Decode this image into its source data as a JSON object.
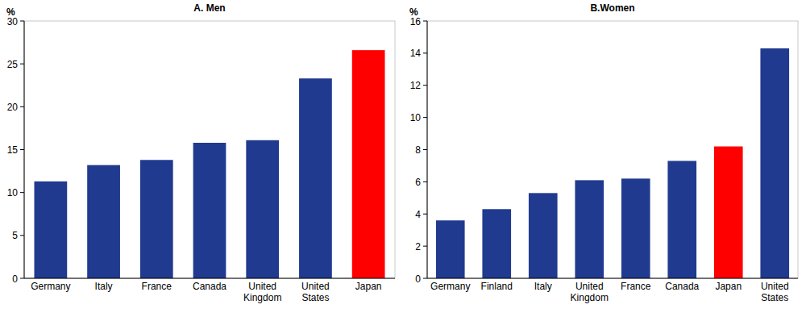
{
  "chart_data": [
    {
      "type": "bar",
      "title": "A. Men",
      "y_label": "%",
      "categories": [
        "Germany",
        "Italy",
        "France",
        "Canada",
        "United Kingdom",
        "United States",
        "Japan"
      ],
      "values": [
        11.3,
        13.2,
        13.8,
        15.8,
        16.1,
        23.3,
        26.6
      ],
      "colors": [
        "#203a8f",
        "#203a8f",
        "#203a8f",
        "#203a8f",
        "#203a8f",
        "#203a8f",
        "#ff0000"
      ],
      "ylim": [
        0,
        30
      ],
      "yticks": [
        0,
        5,
        10,
        15,
        20,
        25,
        30
      ],
      "grid": false
    },
    {
      "type": "bar",
      "title": "B.Women",
      "y_label": "%",
      "categories": [
        "Germany",
        "Finland",
        "Italy",
        "United Kingdom",
        "France",
        "Canada",
        "Japan",
        "United States"
      ],
      "values": [
        3.6,
        4.3,
        5.3,
        6.1,
        6.2,
        7.3,
        8.2,
        14.3
      ],
      "colors": [
        "#203a8f",
        "#203a8f",
        "#203a8f",
        "#203a8f",
        "#203a8f",
        "#203a8f",
        "#ff0000",
        "#203a8f"
      ],
      "ylim": [
        0,
        16
      ],
      "yticks": [
        0,
        2,
        4,
        6,
        8,
        10,
        12,
        14,
        16
      ],
      "grid": false
    }
  ]
}
